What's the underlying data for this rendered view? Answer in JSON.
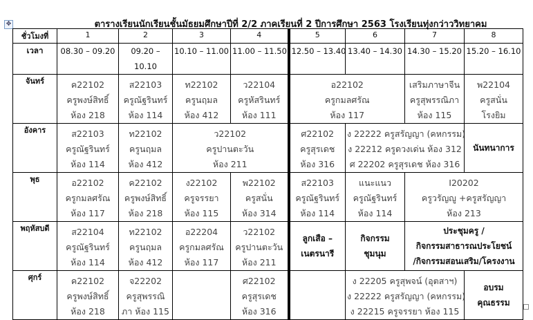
{
  "title": "ตารางเรียนนักเรียนชั้นมัธยมศึกษาปีที่  2/2 ภาคเรียนที่ 2 ปีการศึกษา 2563 โรงเรียนทุ่งกว่าววิทยาคม",
  "header": {
    "period_label": "ชั่วโมงที่",
    "periods": [
      "1",
      "2",
      "3",
      "4",
      "5",
      "6",
      "7",
      "8"
    ]
  },
  "time": {
    "label": "เวลา",
    "slots": [
      "08.30 – 09.20",
      "09.20 –|10.10",
      "10.10 – 11.00",
      "11.00 – 11.50",
      "12.50 – 13.40",
      "13.40 – 14.30",
      "14.30 – 15.20",
      "15.20 – 16.10"
    ]
  },
  "days": [
    {
      "name": "จันทร์",
      "cells": [
        {
          "span": 1,
          "lines": [
            "ค22102",
            "ครูพงษ์สิทธิ์",
            "ห้อง 218"
          ]
        },
        {
          "span": 1,
          "lines": [
            "ส22103",
            "ครูณัฐรินทร์",
            "ห้อง 114"
          ]
        },
        {
          "span": 1,
          "lines": [
            "ท22102",
            "ครูนฤมล",
            "ห้อง 412"
          ]
        },
        {
          "span": 1,
          "lines": [
            "ว22104",
            "ครูหัสรินทร์",
            "ห้อง 111"
          ]
        },
        {
          "span": 2,
          "lines": [
            "อ22102",
            "ครูกมลศรัณ",
            "ห้อง 117"
          ]
        },
        {
          "span": 1,
          "lines": [
            "เสริมภาษาจีน",
            "ครูสุพรรณิภา",
            "ห้อง 115"
          ]
        },
        {
          "span": 1,
          "lines": [
            "พ22104",
            "ครูสนั่น",
            "โรงยิม"
          ]
        }
      ]
    },
    {
      "name": "อังคาร",
      "cells": [
        {
          "span": 1,
          "lines": [
            "ส22103",
            "ครูณัฐรินทร์",
            "ห้อง 114"
          ]
        },
        {
          "span": 1,
          "lines": [
            "ท22102",
            "ครูนฤมล",
            "ห้อง 412"
          ]
        },
        {
          "span": 2,
          "lines": [
            "ว22102",
            "ครูปานตะวัน",
            "ห้อง 211"
          ]
        },
        {
          "span": 1,
          "lines": [
            "ศ22102",
            "ครูสุรเดช",
            "ห้อง 316"
          ]
        },
        {
          "span": 2,
          "lines": [
            "ง 22222 ครูสรัญญา (คหกรรม)",
            "ง 22212 ครูดวงเด่น ห้อง 312",
            "ศ 22202 ครูสุรเดช ห้อง 316"
          ]
        },
        {
          "span": 1,
          "bold": true,
          "lines": [
            "นันทนาการ"
          ]
        }
      ]
    },
    {
      "name": "พุธ",
      "cells": [
        {
          "span": 1,
          "lines": [
            "อ22102",
            "ครูกมลศรัณ",
            "ห้อง 117"
          ]
        },
        {
          "span": 1,
          "lines": [
            "ค22102",
            "ครูพงษ์สิทธิ์",
            "ห้อง 218"
          ]
        },
        {
          "span": 1,
          "lines": [
            "ง22102",
            "ครูจรรยา",
            "ห้อง 115"
          ]
        },
        {
          "span": 1,
          "lines": [
            "พ22102",
            "ครูสนั่น",
            "ห้อง 314"
          ]
        },
        {
          "span": 1,
          "lines": [
            "ส22103",
            "ครูณัฐรินทร์",
            "ห้อง 114"
          ]
        },
        {
          "span": 1,
          "lines": [
            "แนะแนว",
            "ครูณัฐรินทร์",
            "ห้อง 114"
          ]
        },
        {
          "span": 2,
          "lines": [
            "I20202",
            "ครูวรัญญู +ครูสรัญญา",
            "ห้อง 213"
          ]
        }
      ]
    },
    {
      "name": "พฤหัสบดี",
      "cells": [
        {
          "span": 1,
          "lines": [
            "ส22104",
            "ครูณัฐรินทร์",
            "ห้อง 114"
          ]
        },
        {
          "span": 1,
          "lines": [
            "ท22102",
            "ครูนฤมล",
            "ห้อง 412"
          ]
        },
        {
          "span": 1,
          "lines": [
            "อ22204",
            "ครูกมลศรัณ",
            "ห้อง 117"
          ]
        },
        {
          "span": 1,
          "lines": [
            "ว22102",
            "ครูปานตะวัน",
            "ห้อง 211"
          ]
        },
        {
          "span": 1,
          "bold": true,
          "lines": [
            "ลูกเสือ –",
            "เนตรนารี"
          ]
        },
        {
          "span": 1,
          "bold": true,
          "lines": [
            "กิจกรรม",
            "ชุมนุม"
          ]
        },
        {
          "span": 2,
          "bold": true,
          "lines": [
            "ประชุมครู /",
            "กิจกรรมสาธารณประโยชน์",
            "/กิจกรรมสอนเสริม/โครงงาน"
          ]
        }
      ]
    },
    {
      "name": "ศุกร์",
      "cells": [
        {
          "span": 1,
          "lines": [
            "ค22102",
            "ครูพงษ์สิทธิ์",
            "ห้อง 218"
          ]
        },
        {
          "span": 1,
          "lines": [
            "จ22202",
            "ครูสุพรรณิ",
            "ภา ห้อง 115"
          ]
        },
        {
          "span": 1,
          "lines": []
        },
        {
          "span": 1,
          "lines": [
            "ศ22102",
            "ครูสุรเดช",
            "ห้อง 316"
          ]
        },
        {
          "span": 1,
          "lines": []
        },
        {
          "span": 2,
          "lines": [
            "ง 22205 ครูสุพจน์ (อุตสาฯ)",
            "ง 22222 ครูสรัญญา (คหกรรม)",
            "ง 22215 ครูจรรยา ห้อง 115"
          ]
        },
        {
          "span": 1,
          "bold": true,
          "lines": [
            "อบรม",
            "คุณธรรม"
          ]
        }
      ]
    }
  ]
}
